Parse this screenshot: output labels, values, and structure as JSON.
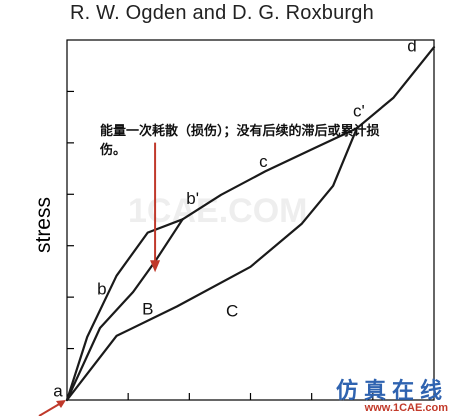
{
  "header": {
    "title": "R. W. Ogden and D. G. Roxburgh"
  },
  "annotation": {
    "text": "能量一次耗散（损伤）；没有后续的滞后或累计损伤。"
  },
  "watermark": {
    "brand_cn": "仿真在线",
    "url": "www.1CAE.com",
    "faint_text": "1CAE.COM"
  },
  "colors": {
    "curve": "#1a1a1a",
    "arrow": "#c0392b",
    "axis": "#000000",
    "title": "#222222"
  },
  "chart_data": {
    "type": "line",
    "title": "R. W. Ogden and D. G. Roxburgh",
    "xlabel": "",
    "ylabel": "stress",
    "xlim": [
      0,
      10
    ],
    "ylim": [
      0,
      10
    ],
    "grid": false,
    "series": [
      {
        "name": "b",
        "values": [
          [
            0,
            0
          ],
          [
            0.55,
            1.75
          ],
          [
            1.35,
            3.45
          ],
          [
            2.2,
            4.65
          ],
          [
            3.15,
            5.02
          ]
        ]
      },
      {
        "name": "c",
        "values": [
          [
            3.15,
            5.02
          ],
          [
            4.2,
            5.7
          ],
          [
            5.4,
            6.35
          ],
          [
            6.75,
            7.0
          ],
          [
            7.9,
            7.55
          ]
        ]
      },
      {
        "name": "d",
        "values": [
          [
            7.9,
            7.55
          ],
          [
            8.9,
            8.4
          ],
          [
            10.0,
            9.8
          ]
        ]
      },
      {
        "name": "B",
        "values": [
          [
            0,
            0
          ],
          [
            0.9,
            2.0
          ],
          [
            1.8,
            3.0
          ],
          [
            2.4,
            3.85
          ],
          [
            3.15,
            5.02
          ]
        ]
      },
      {
        "name": "C",
        "values": [
          [
            0,
            0
          ],
          [
            1.35,
            1.78
          ],
          [
            3.0,
            2.6
          ],
          [
            5.0,
            3.7
          ],
          [
            6.4,
            4.9
          ],
          [
            7.25,
            5.95
          ],
          [
            7.9,
            7.55
          ]
        ]
      }
    ],
    "points": [
      {
        "label": "a",
        "x": 0,
        "y": 0
      },
      {
        "label": "b'",
        "x": 3.15,
        "y": 5.02
      },
      {
        "label": "c'",
        "x": 7.9,
        "y": 7.55
      }
    ],
    "curve_labels": [
      {
        "label": "b",
        "x": 0.95,
        "y": 3.05
      },
      {
        "label": "B",
        "x": 2.2,
        "y": 2.5
      },
      {
        "label": "c",
        "x": 5.35,
        "y": 6.6
      },
      {
        "label": "C",
        "x": 4.5,
        "y": 2.45
      },
      {
        "label": "d",
        "x": 9.4,
        "y": 9.8
      }
    ],
    "arrow_annotation": {
      "from": [
        2.4,
        7.15
      ],
      "to": [
        2.4,
        3.55
      ]
    }
  }
}
